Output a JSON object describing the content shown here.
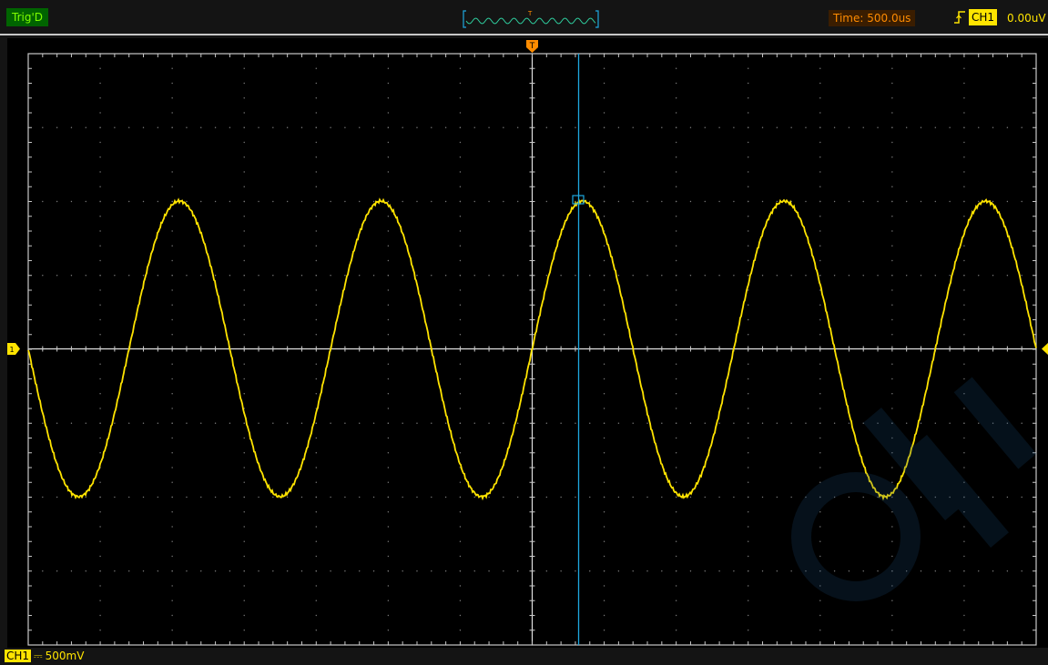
{
  "top_bar": {
    "trigger_status": "Trig'D",
    "timebase": "Time: 500.0us",
    "trigger_source": "CH1",
    "trigger_level": "0.00uV",
    "edge_icon": "rising-edge-icon",
    "preview_trigger_marker": "T"
  },
  "screen": {
    "trigger_position_marker": "T",
    "channel_ground_marker": "1",
    "cursor_icon": "vertical-cursor-icon"
  },
  "channel_status": {
    "channel": "CH1",
    "coupling_symbol": "⎓",
    "volts_per_div": "500mV"
  },
  "waveform": {
    "channel": "CH1",
    "color": "#ffe400",
    "cycles_on_screen": 5,
    "amplitude_divisions": 2
  },
  "colors": {
    "trace": "#ffe400",
    "cursor": "#1ea8e0",
    "trigger_marker": "#ff8c00",
    "grid": "#c8c8c8",
    "trigger_status": "#7fff00"
  }
}
